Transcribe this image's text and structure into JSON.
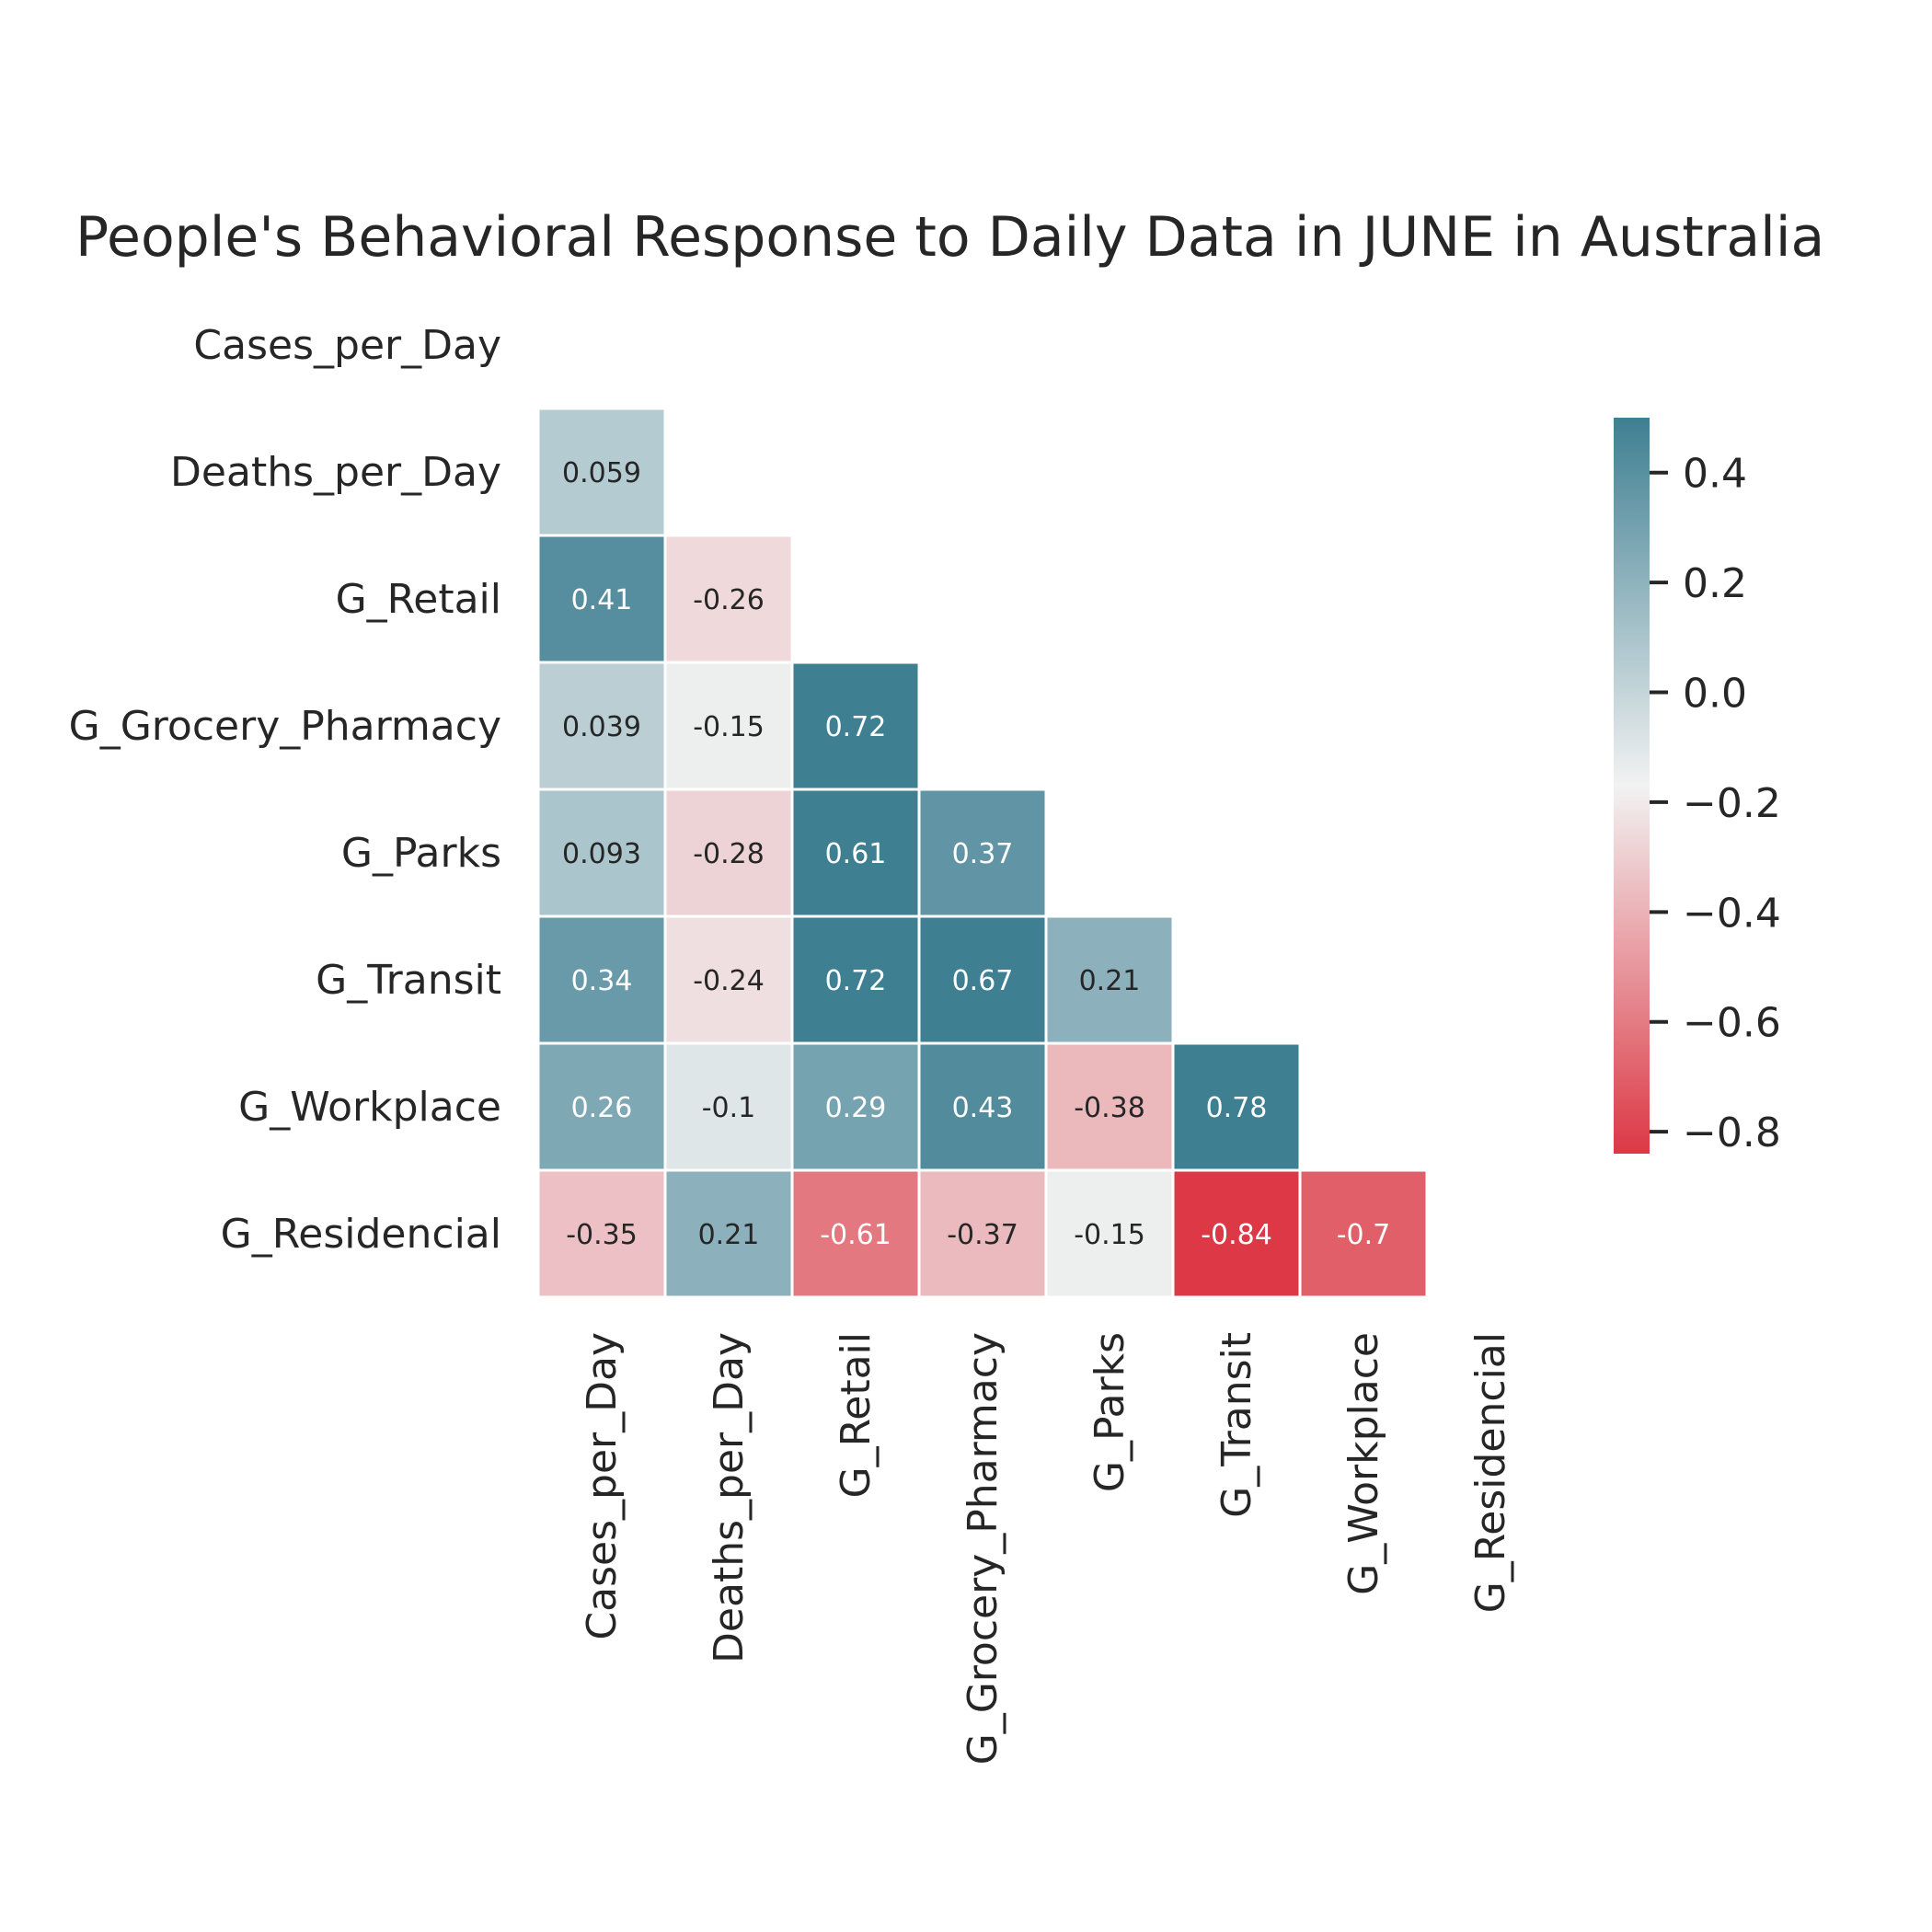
{
  "chart_data": {
    "type": "heatmap",
    "title": "People's Behavioral Response to Daily Data in JUNE in Australia",
    "variables": [
      "Cases_per_Day",
      "Deaths_per_Day",
      "G_Retail",
      "G_Grocery_Pharmacy",
      "G_Parks",
      "G_Transit",
      "G_Workplace",
      "G_Residencial"
    ],
    "matrix": [
      [
        null,
        null,
        null,
        null,
        null,
        null,
        null,
        null
      ],
      [
        0.059,
        null,
        null,
        null,
        null,
        null,
        null,
        null
      ],
      [
        0.41,
        -0.26,
        null,
        null,
        null,
        null,
        null,
        null
      ],
      [
        0.039,
        -0.15,
        0.72,
        null,
        null,
        null,
        null,
        null
      ],
      [
        0.093,
        -0.28,
        0.61,
        0.37,
        null,
        null,
        null,
        null
      ],
      [
        0.34,
        -0.24,
        0.72,
        0.67,
        0.21,
        null,
        null,
        null
      ],
      [
        0.26,
        -0.1,
        0.29,
        0.43,
        -0.38,
        0.78,
        null,
        null
      ],
      [
        -0.35,
        0.21,
        -0.61,
        -0.37,
        -0.15,
        -0.84,
        -0.7,
        null
      ]
    ],
    "mask": "upper-triangle",
    "vmin": -0.84,
    "vmax": 0.5,
    "colorbar_ticks": [
      0.4,
      0.2,
      0.0,
      -0.2,
      -0.4,
      -0.6,
      -0.8
    ],
    "colorbar_tick_labels": [
      "0.4",
      "0.2",
      "0.0",
      "−0.2",
      "−0.4",
      "−0.6",
      "−0.8"
    ],
    "colormap": {
      "low": "#dc3845",
      "mid": "#f2f2f2",
      "high": "#3e7f92"
    }
  }
}
